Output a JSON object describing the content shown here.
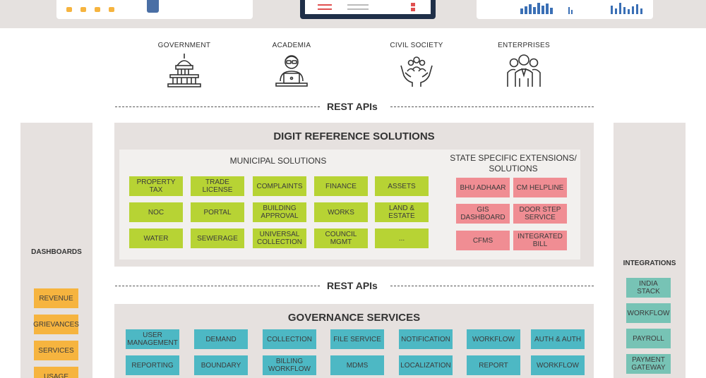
{
  "personas": [
    {
      "label": "GOVERNMENT",
      "icon": "capitol-building-icon"
    },
    {
      "label": "ACADEMIA",
      "icon": "student-laptop-icon"
    },
    {
      "label": "CIVIL SOCIETY",
      "icon": "hands-people-icon"
    },
    {
      "label": "ENTERPRISES",
      "icon": "business-people-icon"
    }
  ],
  "rest_apis": {
    "label_1": "REST APIs",
    "label_2": "REST APIs"
  },
  "dashboards": {
    "title": "DASHBOARDS",
    "items": [
      "REVENUE",
      "GRIEVANCES",
      "SERVICES",
      "USAGE"
    ]
  },
  "integrations": {
    "title": "INTEGRATIONS",
    "items": [
      "INDIA STACK",
      "WORKFLOW",
      "PAYROLL",
      "PAYMENT GATEWAY"
    ]
  },
  "reference_solutions": {
    "title": "DIGIT REFERENCE SOLUTIONS",
    "municipal": {
      "title": "MUNICIPAL SOLUTIONS",
      "items": [
        "PROPERTY TAX",
        "TRADE LICENSE",
        "COMPLAINTS",
        "FINANCE",
        "ASSETS",
        "NOC",
        "PORTAL",
        "BUILDING APPROVAL",
        "WORKS",
        "LAND & ESTATE",
        "WATER",
        "SEWERAGE",
        "UNIVERSAL COLLECTION",
        "COUNCIL MGMT",
        "..."
      ]
    },
    "state": {
      "title": "STATE SPECIFIC EXTENSIONS/ SOLUTIONS",
      "items": [
        "BHU ADHAAR",
        "CM HELPLINE",
        "GIS DASHBOARD",
        "DOOR STEP SERVICE",
        "CFMS",
        "INTEGRATED BILL"
      ]
    }
  },
  "governance": {
    "title": "GOVERNANCE SERVICES",
    "items": [
      "USER MANAGEMENT",
      "DEMAND",
      "COLLECTION",
      "FILE SERVICE",
      "NOTIFICATION",
      "WORKFLOW",
      "AUTH & AUTH",
      "REPORTING",
      "BOUNDARY",
      "BILLING WORKFLOW",
      "MDMS",
      "LOCALIZATION",
      "REPORT",
      "WORKFLOW"
    ]
  },
  "colors": {
    "municipal_tile": "#b7d334",
    "state_tile": "#f08d93",
    "governance_tile": "#4db8c4",
    "dashboard_tile": "#f6b43f",
    "integration_tile": "#77c3b5",
    "panel_bg": "#e6e1df"
  }
}
